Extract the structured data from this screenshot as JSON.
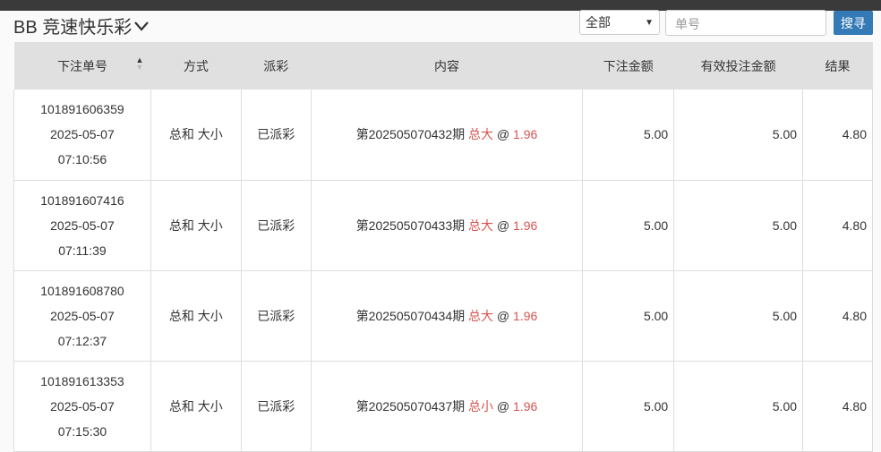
{
  "header": {
    "title": "BB 竞速快乐彩",
    "filter_value": "全部",
    "search_placeholder": "单号",
    "search_button": "搜寻"
  },
  "columns": [
    "下注单号",
    "方式",
    "派彩",
    "内容",
    "下注金额",
    "有效投注金额",
    "结果"
  ],
  "rows": [
    {
      "id": "101891606359",
      "date": "2025-05-07",
      "time": "07:10:56",
      "method": "总和 大小",
      "payout": "已派彩",
      "period": "第202505070432期",
      "pick": "总大",
      "at": "@",
      "odds": "1.96",
      "amount": "5.00",
      "valid": "5.00",
      "result": "4.80"
    },
    {
      "id": "101891607416",
      "date": "2025-05-07",
      "time": "07:11:39",
      "method": "总和 大小",
      "payout": "已派彩",
      "period": "第202505070433期",
      "pick": "总大",
      "at": "@",
      "odds": "1.96",
      "amount": "5.00",
      "valid": "5.00",
      "result": "4.80"
    },
    {
      "id": "101891608780",
      "date": "2025-05-07",
      "time": "07:12:37",
      "method": "总和 大小",
      "payout": "已派彩",
      "period": "第202505070434期",
      "pick": "总大",
      "at": "@",
      "odds": "1.96",
      "amount": "5.00",
      "valid": "5.00",
      "result": "4.80"
    },
    {
      "id": "101891613353",
      "date": "2025-05-07",
      "time": "07:15:30",
      "method": "总和 大小",
      "payout": "已派彩",
      "period": "第202505070437期",
      "pick": "总小",
      "at": "@",
      "odds": "1.96",
      "amount": "5.00",
      "valid": "5.00",
      "result": "4.80"
    }
  ]
}
